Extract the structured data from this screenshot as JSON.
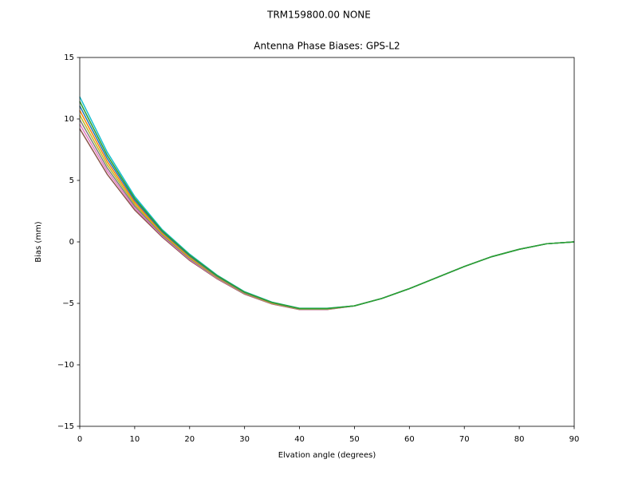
{
  "chart_data": {
    "type": "line",
    "suptitle": "TRM159800.00    NONE",
    "title": "Antenna Phase Biases: GPS-L2",
    "xlabel": "Elvation angle (degrees)",
    "ylabel": "Bias (mm)",
    "x": [
      0,
      5,
      10,
      15,
      20,
      25,
      30,
      35,
      40,
      45,
      50,
      55,
      60,
      65,
      70,
      75,
      80,
      85,
      90
    ],
    "xlim": [
      0,
      90
    ],
    "xticks": [
      0,
      10,
      20,
      30,
      40,
      50,
      60,
      70,
      80,
      90
    ],
    "ylim": [
      -15,
      15
    ],
    "yticks": [
      {
        "value": -15,
        "label": "−15"
      },
      {
        "value": -10,
        "label": "−10"
      },
      {
        "value": -5,
        "label": "−5"
      },
      0,
      5,
      10,
      15
    ],
    "grid": false,
    "series": [
      {
        "color": "#8c564b",
        "values": [
          9.2,
          5.5,
          2.6,
          0.4,
          -1.5,
          -3.0,
          -4.25,
          -5.05,
          -5.5,
          -5.5,
          -5.2,
          -4.6,
          -3.8,
          -2.9,
          -2.0,
          -1.2,
          -0.6,
          -0.15,
          0
        ]
      },
      {
        "color": "#e377c2",
        "values": [
          9.57,
          5.76,
          2.76,
          0.49,
          -1.43,
          -2.96,
          -4.22,
          -5.03,
          -5.49,
          -5.49,
          -5.2,
          -4.6,
          -3.8,
          -2.9,
          -2.0,
          -1.2,
          -0.6,
          -0.15,
          0
        ]
      },
      {
        "color": "#7f7f7f",
        "values": [
          9.94,
          6.01,
          2.91,
          0.57,
          -1.36,
          -2.91,
          -4.19,
          -5.01,
          -5.47,
          -5.47,
          -5.2,
          -4.6,
          -3.8,
          -2.9,
          -2.0,
          -1.2,
          -0.6,
          -0.15,
          0
        ]
      },
      {
        "color": "#bcbd22",
        "values": [
          10.31,
          6.27,
          3.07,
          0.66,
          -1.29,
          -2.87,
          -4.16,
          -4.99,
          -5.46,
          -5.46,
          -5.2,
          -4.6,
          -3.8,
          -2.9,
          -2.0,
          -1.2,
          -0.6,
          -0.15,
          0
        ]
      },
      {
        "color": "#ff7f0e",
        "values": [
          10.69,
          6.53,
          3.23,
          0.74,
          -1.21,
          -2.83,
          -4.14,
          -4.96,
          -5.44,
          -5.44,
          -5.2,
          -4.6,
          -3.8,
          -2.9,
          -2.0,
          -1.2,
          -0.6,
          -0.15,
          0
        ]
      },
      {
        "color": "#1f77b4",
        "values": [
          11.06,
          6.79,
          3.39,
          0.83,
          -1.14,
          -2.79,
          -4.11,
          -4.94,
          -5.43,
          -5.43,
          -5.2,
          -4.6,
          -3.8,
          -2.9,
          -2.0,
          -1.2,
          -0.6,
          -0.15,
          0
        ]
      },
      {
        "color": "#17becf",
        "values": [
          11.8,
          7.3,
          3.7,
          1.0,
          -1.0,
          -2.7,
          -4.05,
          -4.9,
          -5.4,
          -5.4,
          -5.2,
          -4.6,
          -3.8,
          -2.9,
          -2.0,
          -1.2,
          -0.6,
          -0.15,
          0
        ]
      },
      {
        "color": "#2ca02c",
        "values": [
          11.43,
          7.04,
          3.54,
          0.91,
          -1.07,
          -2.74,
          -4.08,
          -4.92,
          -5.41,
          -5.41,
          -5.2,
          -4.6,
          -3.8,
          -2.9,
          -2.0,
          -1.2,
          -0.6,
          -0.15,
          0
        ]
      }
    ]
  }
}
